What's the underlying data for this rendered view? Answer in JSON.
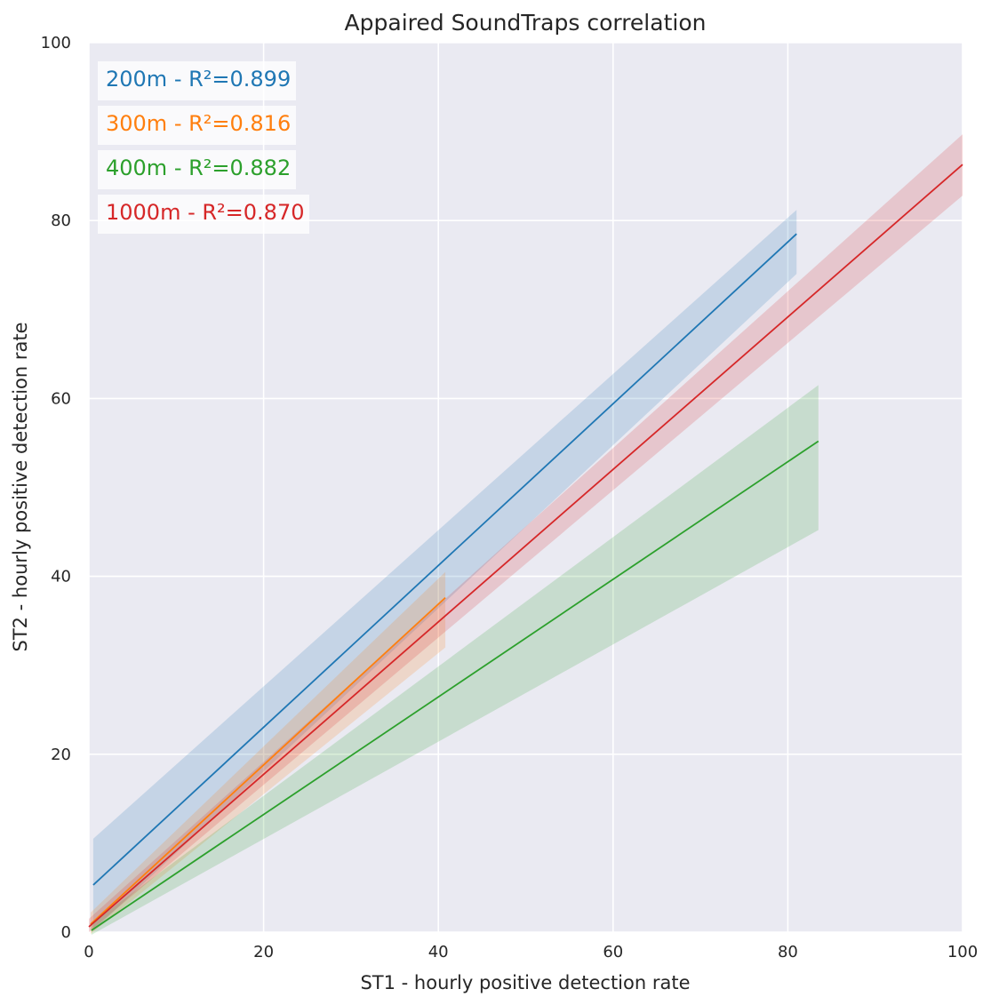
{
  "chart_data": {
    "type": "line",
    "title": "Appaired SoundTraps correlation",
    "xlabel": "ST1 - hourly positive detection rate",
    "ylabel": "ST2 - hourly positive detection rate",
    "xlim": [
      0,
      100
    ],
    "ylim": [
      0,
      100
    ],
    "xticks": [
      "0",
      "20",
      "40",
      "60",
      "80",
      "100"
    ],
    "yticks": [
      "0",
      "20",
      "40",
      "60",
      "80",
      "100"
    ],
    "grid": true,
    "background": "#eaeaf2",
    "series": [
      {
        "name": "200m",
        "color": "#1f77b4",
        "x": [
          0.5,
          81
        ],
        "y": [
          5.3,
          78.5
        ],
        "ci_lower": [
          0.2,
          74.0
        ],
        "ci_upper": [
          10.5,
          81.2
        ]
      },
      {
        "name": "300m",
        "color": "#ff7f0e",
        "x": [
          0.2,
          40.8
        ],
        "y": [
          0.9,
          37.6
        ],
        "ci_lower": [
          -0.2,
          32.0
        ],
        "ci_upper": [
          2.2,
          40.5
        ]
      },
      {
        "name": "400m",
        "color": "#2ca02c",
        "x": [
          0.3,
          83.5
        ],
        "y": [
          0.2,
          55.2
        ],
        "ci_lower": [
          -0.3,
          45.2
        ],
        "ci_upper": [
          1.0,
          61.5
        ]
      },
      {
        "name": "1000m",
        "color": "#d62728",
        "x": [
          0.0,
          100.0
        ],
        "y": [
          0.6,
          86.3
        ],
        "ci_lower": [
          0.0,
          82.8
        ],
        "ci_upper": [
          1.5,
          89.7
        ]
      }
    ],
    "annotations": [
      {
        "text": "200m - R²=0.899",
        "color": "#1f77b4"
      },
      {
        "text": "300m - R²=0.816",
        "color": "#ff7f0e"
      },
      {
        "text": "400m - R²=0.882",
        "color": "#2ca02c"
      },
      {
        "text": "1000m - R²=0.870",
        "color": "#d62728"
      }
    ]
  }
}
